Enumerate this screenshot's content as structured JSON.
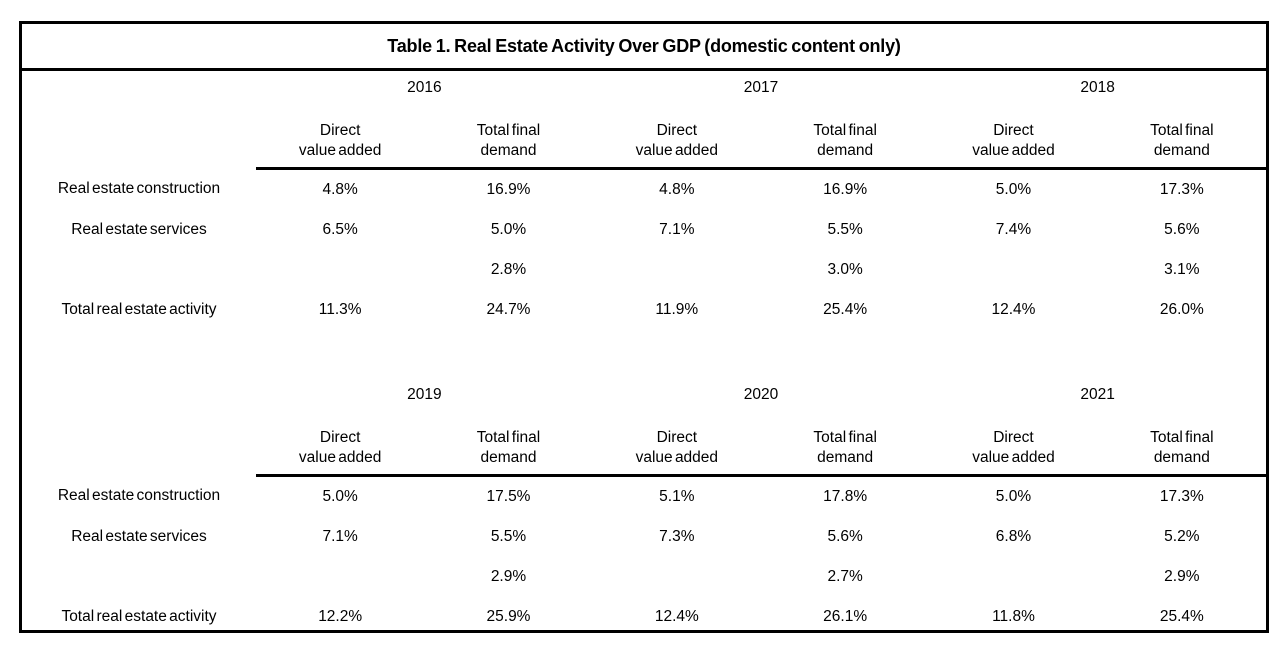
{
  "title": "Table 1. Real Estate Activity Over GDP (domestic content only)",
  "subheaders": {
    "direct_line1": "Direct",
    "direct_line2": "value added",
    "total_line1": "Total final",
    "total_line2": "demand"
  },
  "halves": [
    {
      "years": [
        "2016",
        "2017",
        "2018"
      ],
      "rows": [
        {
          "label": "Real estate construction",
          "values": [
            "4.8%",
            "16.9%",
            "4.8%",
            "16.9%",
            "5.0%",
            "17.3%"
          ]
        },
        {
          "label": "Real estate services",
          "values": [
            "6.5%",
            "5.0%",
            "7.1%",
            "5.5%",
            "7.4%",
            "5.6%"
          ]
        },
        {
          "label": "",
          "values": [
            "",
            "2.8%",
            "",
            "3.0%",
            "",
            "3.1%"
          ]
        },
        {
          "label": "Total real estate activity",
          "values": [
            "11.3%",
            "24.7%",
            "11.9%",
            "25.4%",
            "12.4%",
            "26.0%"
          ]
        }
      ]
    },
    {
      "years": [
        "2019",
        "2020",
        "2021"
      ],
      "rows": [
        {
          "label": "Real estate construction",
          "values": [
            "5.0%",
            "17.5%",
            "5.1%",
            "17.8%",
            "5.0%",
            "17.3%"
          ]
        },
        {
          "label": "Real estate services",
          "values": [
            "7.1%",
            "5.5%",
            "7.3%",
            "5.6%",
            "6.8%",
            "5.2%"
          ]
        },
        {
          "label": "",
          "values": [
            "",
            "2.9%",
            "",
            "2.7%",
            "",
            "2.9%"
          ]
        },
        {
          "label": "Total real estate activity",
          "values": [
            "12.2%",
            "25.9%",
            "12.4%",
            "26.1%",
            "11.8%",
            "25.4%"
          ]
        }
      ]
    }
  ]
}
